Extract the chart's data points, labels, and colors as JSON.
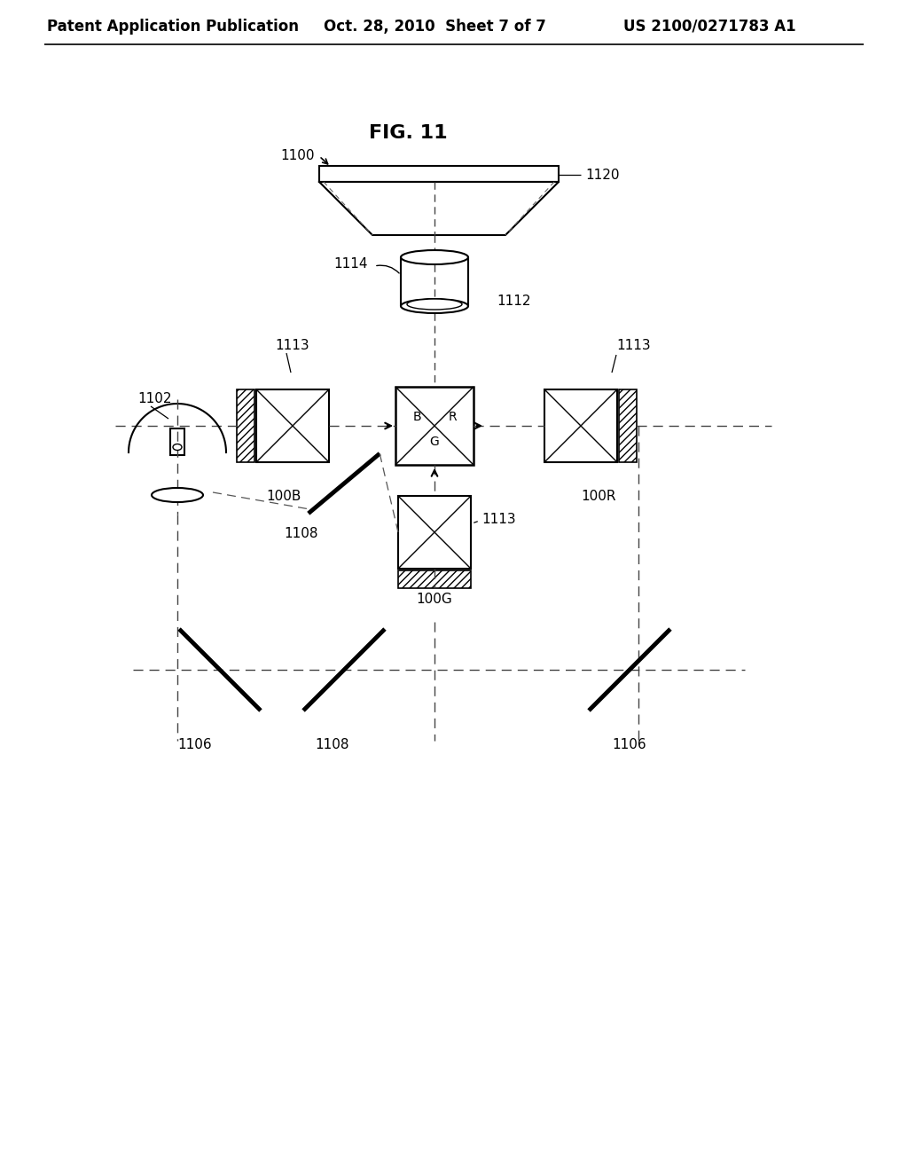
{
  "bg_color": "#ffffff",
  "line_color": "#000000",
  "header_left": "Patent Application Publication",
  "header_mid": "Oct. 28, 2010  Sheet 7 of 7",
  "header_right": "US 2100/0271783 A1",
  "fig_label": "FIG. 11",
  "label_1100": "1100",
  "label_1120": "1120",
  "label_1114": "1114",
  "label_1112": "1112",
  "label_1113a": "1113",
  "label_1113b": "1113",
  "label_1113c": "1113",
  "label_1102": "1102",
  "label_100B": "100B",
  "label_100R": "100R",
  "label_100G": "100G",
  "label_1108a": "1108",
  "label_1108b": "1108",
  "label_1106a": "1106",
  "label_1106b": "1106"
}
